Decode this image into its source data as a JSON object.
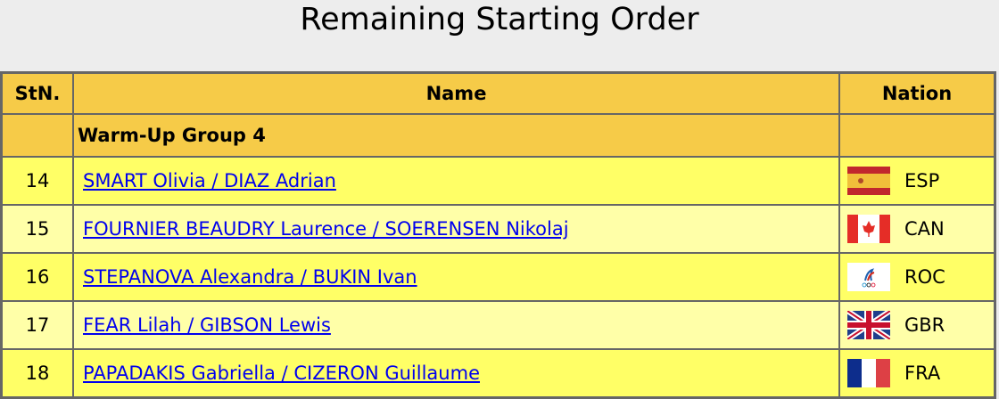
{
  "page": {
    "title": "Remaining Starting Order"
  },
  "table": {
    "headers": {
      "stn": "StN.",
      "name": "Name",
      "nation": "Nation"
    },
    "group_label": "Warm-Up Group 4",
    "rows": [
      {
        "stn": "14",
        "name": "SMART Olivia / DIAZ Adrian",
        "nation": "ESP",
        "flag": "flag-spain"
      },
      {
        "stn": "15",
        "name": "FOURNIER BEAUDRY Laurence / SOERENSEN Nikolaj",
        "nation": "CAN",
        "flag": "flag-canada"
      },
      {
        "stn": "16",
        "name": "STEPANOVA Alexandra / BUKIN Ivan",
        "nation": "ROC",
        "flag": "flag-roc"
      },
      {
        "stn": "17",
        "name": "FEAR Lilah / GIBSON Lewis",
        "nation": "GBR",
        "flag": "flag-uk"
      },
      {
        "stn": "18",
        "name": "PAPADAKIS Gabriella / CIZERON Guillaume",
        "nation": "FRA",
        "flag": "flag-france"
      }
    ]
  },
  "colors": {
    "header": "#f6cb48",
    "row_odd": "#ffff66",
    "row_even": "#ffffa8",
    "link": "#0000ee",
    "border": "#666666"
  }
}
